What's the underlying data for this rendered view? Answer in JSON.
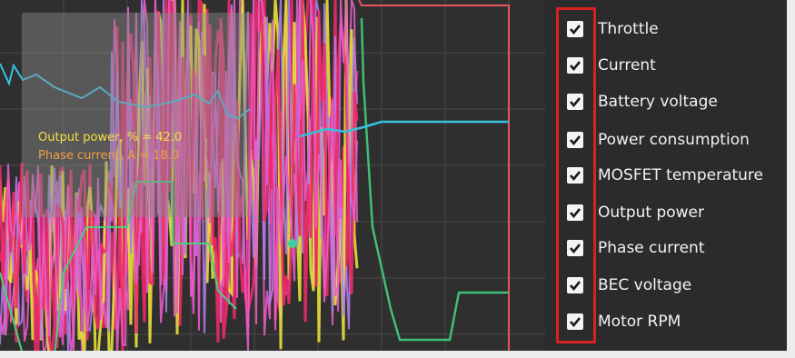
{
  "legend": {
    "items": [
      {
        "label": "Throttle",
        "checked": true
      },
      {
        "label": "Current",
        "checked": true
      },
      {
        "label": "Battery voltage",
        "checked": true
      },
      {
        "label": "Power consumption",
        "checked": true
      },
      {
        "label": "MOSFET temperature",
        "checked": true
      },
      {
        "label": "Output power",
        "checked": true
      },
      {
        "label": "Phase current",
        "checked": true
      },
      {
        "label": "BEC voltage",
        "checked": true
      },
      {
        "label": "Motor RPM",
        "checked": true
      }
    ]
  },
  "readout": {
    "output_power": "Output power, % = 42.0",
    "phase_current": "Phase current, A = 18.0"
  },
  "colors": {
    "throttle": "#e8e23a",
    "current": "#35c3e0",
    "battery": "#7fe07a",
    "power": "#e85cc8",
    "mosfet": "#b07ce8",
    "output": "#f0e040",
    "phase": "#f09a3a",
    "bec": "#4bd07a",
    "rpm": "#ec2a6a",
    "highlight_box": "#d8221f"
  }
}
